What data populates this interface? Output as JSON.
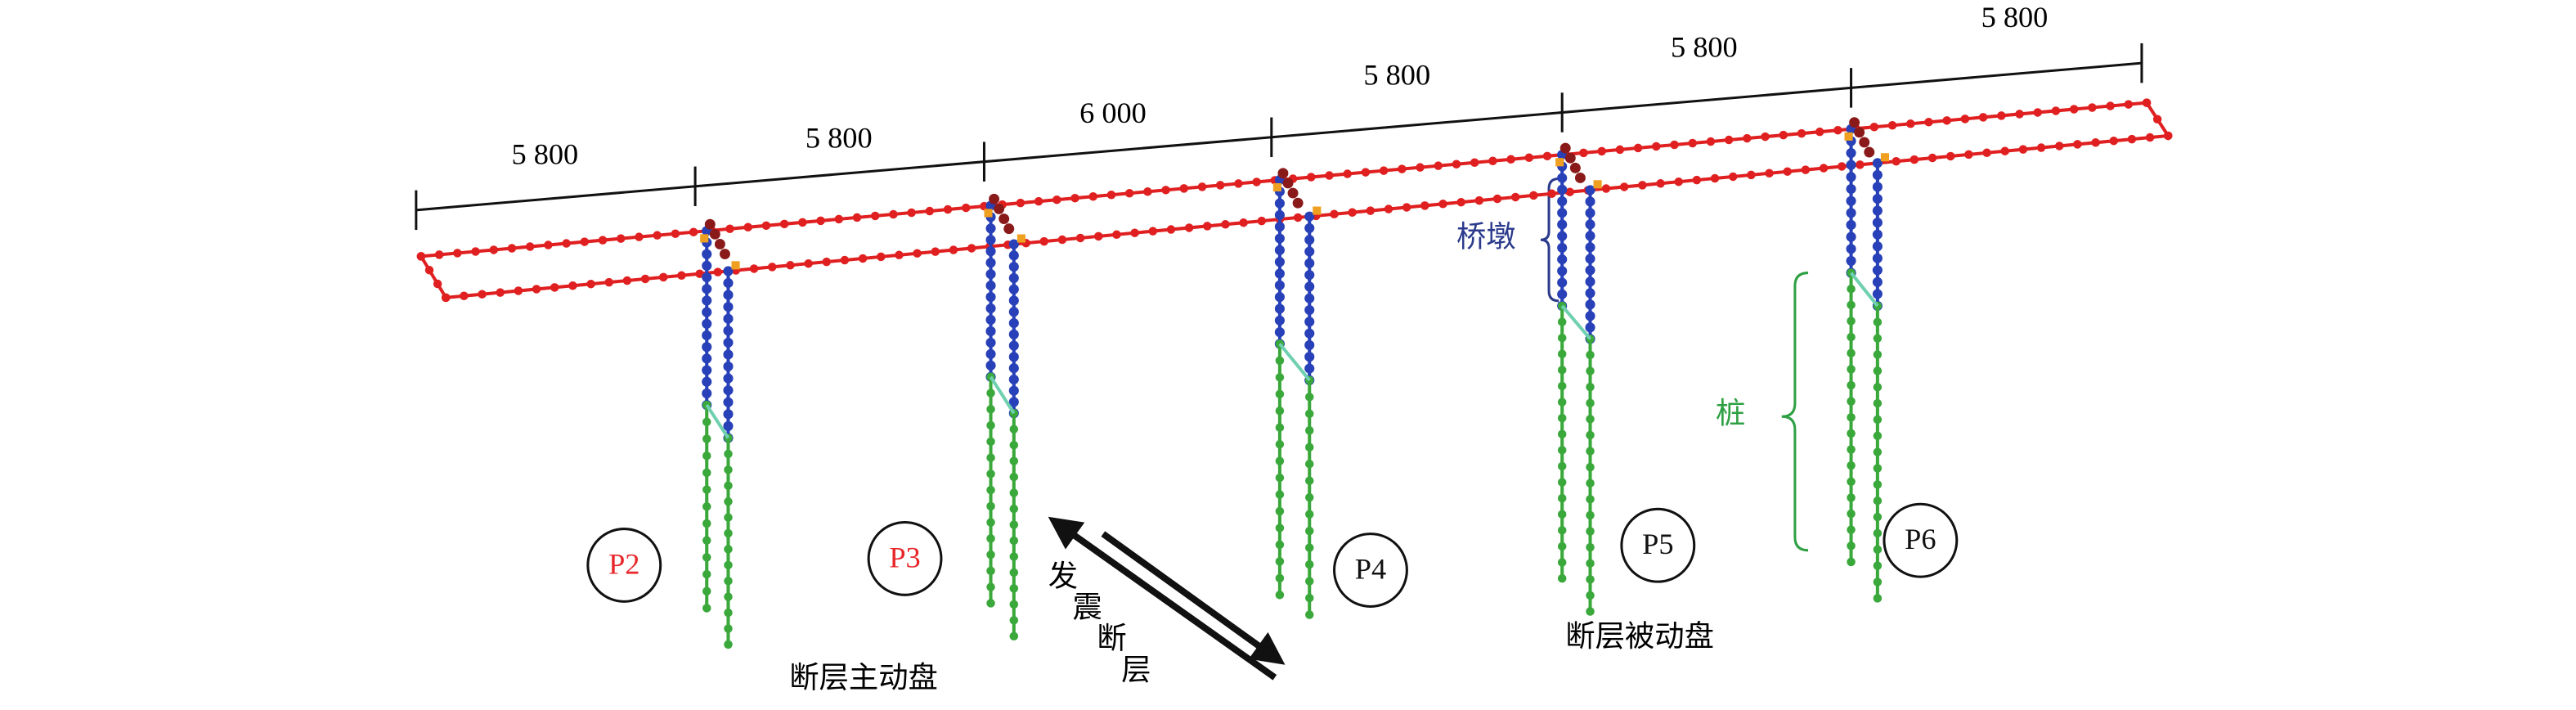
{
  "spans": [
    "5 800",
    "5 800",
    "6 000",
    "5 800",
    "5 800",
    "5 800"
  ],
  "piers": [
    {
      "label": "P2",
      "color": "#e8262a"
    },
    {
      "label": "P3",
      "color": "#e8262a"
    },
    {
      "label": "P4",
      "color": "#111111"
    },
    {
      "label": "P5",
      "color": "#111111"
    },
    {
      "label": "P6",
      "color": "#111111"
    }
  ],
  "annotations": {
    "active": "断层主动盘",
    "passive": "断层被动盘",
    "fault": "发震断层",
    "pier": "桥墩",
    "pile": "桩"
  }
}
